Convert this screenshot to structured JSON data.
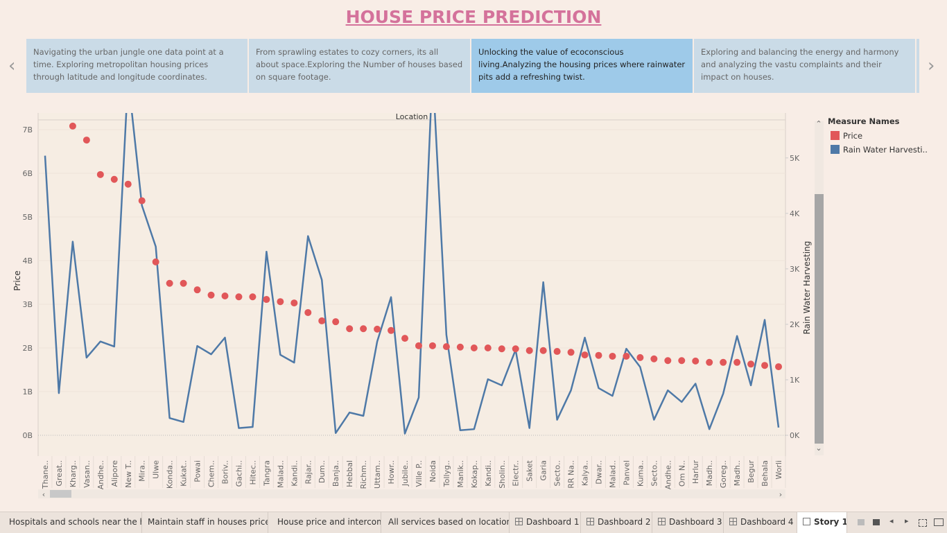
{
  "header": {
    "title": "HOUSE PRICE PREDICTION"
  },
  "story_points": [
    "Navigating the urban jungle one data point at a time. Exploring metropolitan housing prices through latitude and longitude coordinates.",
    "From sprawling estates to cozy corners, its all about space.Exploring the Number of houses based on square footage.",
    "Unlocking the value of ecoconscious living.Analyzing the housing prices where rainwater pits add a refreshing twist.",
    " Exploring and balancing the energy and harmony and analyzing the vastu complaints and their impact on houses."
  ],
  "chart_data": {
    "type": "combo",
    "title": "Location",
    "ylabel": "Price",
    "y2label": "Rain Water Harvesting",
    "legend_title": "Measure Names",
    "grid": true,
    "categories": [
      "Thane..",
      "Great..",
      "Kharg..",
      "Vasan..",
      "Andhe..",
      "Alipore",
      "New T..",
      "Mira..",
      "Ulwe",
      "Konda..",
      "Kukat..",
      "Powai",
      "Chem..",
      "Boriv..",
      "Gachi..",
      "Hitec..",
      "Tangra",
      "Malad..",
      "Kandi..",
      "Rajar..",
      "Dum..",
      "Banja..",
      "Hebbal",
      "Richm..",
      "Uttam..",
      "Howr..",
      "Jubile..",
      "Ville P..",
      "Noida",
      "Tollyg..",
      "Manik..",
      "Kokap..",
      "Kandi..",
      "Sholin..",
      "Electr..",
      "Saket",
      "Garia",
      "Secto..",
      "RR Na..",
      "Kalya..",
      "Dwar..",
      "Malad..",
      "Panvel",
      "Kuma..",
      "Secto..",
      "Andhe..",
      "Om N..",
      "Harlur",
      "Madh..",
      "Goreg..",
      "Madh..",
      "Begur",
      "Behala",
      "Worli"
    ],
    "series": [
      {
        "name": "Price",
        "type": "scatter",
        "color": "#e15759",
        "values": [
          null,
          null,
          7.08,
          6.76,
          5.97,
          5.86,
          5.75,
          5.37,
          3.97,
          3.48,
          3.48,
          3.33,
          3.21,
          3.19,
          3.17,
          3.17,
          3.11,
          3.06,
          3.03,
          2.81,
          2.62,
          2.6,
          2.44,
          2.44,
          2.43,
          2.4,
          2.22,
          2.05,
          2.05,
          2.03,
          2.02,
          2.0,
          2.0,
          1.98,
          1.98,
          1.94,
          1.94,
          1.92,
          1.9,
          1.84,
          1.83,
          1.81,
          1.81,
          1.78,
          1.75,
          1.71,
          1.71,
          1.7,
          1.67,
          1.67,
          1.67,
          1.63,
          1.6,
          1.57
        ]
      },
      {
        "name": "Rain Water Harvesti..",
        "type": "line",
        "color": "#4e79a7",
        "axis": "y2",
        "values": [
          5040,
          760,
          3490,
          1400,
          1690,
          1600,
          6450,
          4140,
          3400,
          310,
          240,
          1610,
          1460,
          1760,
          130,
          150,
          3310,
          1450,
          1310,
          3590,
          2800,
          40,
          410,
          350,
          1690,
          2490,
          30,
          680,
          6600,
          1810,
          90,
          110,
          1010,
          900,
          1540,
          130,
          2760,
          280,
          810,
          1760,
          850,
          710,
          1560,
          1230,
          280,
          810,
          600,
          930,
          110,
          750,
          1790,
          900,
          2080,
          140
        ]
      }
    ],
    "ylim": [
      -0.476,
      7.38
    ],
    "yticks": [
      {
        "value": 0,
        "label": "0B"
      },
      {
        "value": 1,
        "label": "1B"
      },
      {
        "value": 2,
        "label": "2B"
      },
      {
        "value": 3,
        "label": "3B"
      },
      {
        "value": 4,
        "label": "4B"
      },
      {
        "value": 5,
        "label": "5B"
      },
      {
        "value": 6,
        "label": "6B"
      },
      {
        "value": 7,
        "label": "7B"
      }
    ],
    "y2lim": [
      -375,
      5810
    ],
    "y2ticks": [
      {
        "value": 0,
        "label": "0K"
      },
      {
        "value": 1000,
        "label": "1K"
      },
      {
        "value": 2000,
        "label": "2K"
      },
      {
        "value": 3000,
        "label": "3K"
      },
      {
        "value": 4000,
        "label": "4K"
      },
      {
        "value": 5000,
        "label": "5K"
      }
    ]
  },
  "tabs": [
    "Hospitals and schools near the h...",
    "Maintain staff in houses prices",
    "House price and intercom",
    "All services based on location",
    "Dashboard 1",
    "Dashboard 2",
    "Dashboard 3",
    "Dashboard 4",
    "Story 1"
  ]
}
